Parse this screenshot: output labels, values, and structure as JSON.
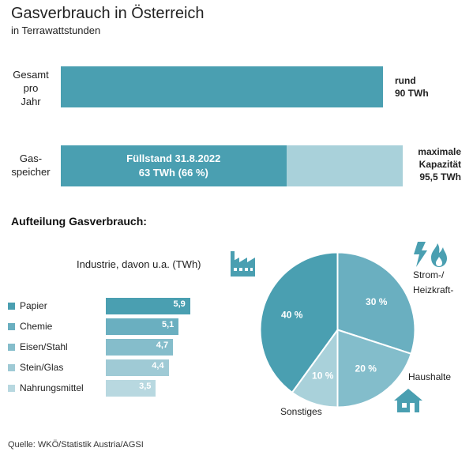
{
  "header": {
    "title": "Gasverbrauch  in Österreich",
    "subtitle": "in Terrawattstunden"
  },
  "top_bars": {
    "consumption": {
      "label": "Gesamt\npro\nJahr",
      "value_text": "rund\n90 TWh",
      "value": 90
    },
    "storage": {
      "label": "Gas-\nspeicher",
      "fill_text_line1": "Füllstand 31.8.2022",
      "fill_text_line2": "63 TWh (66 %)",
      "fill_value": 63,
      "capacity_text": "maximale\nKapazität\n95,5 TWh",
      "capacity": 95.5
    }
  },
  "section": {
    "title": "Aufteilung Gasverbrauch:",
    "industry_title": "Industrie, davon u.a. (TWh)"
  },
  "chart_data": [
    {
      "type": "bar",
      "title": "Gasverbrauch  in Österreich",
      "subtitle": "in Terrawattstunden",
      "categories": [
        "Gesamt pro Jahr",
        "Gasspeicher"
      ],
      "series": [
        {
          "name": "",
          "values": [
            90,
            63
          ]
        },
        {
          "name": "",
          "values": [
            null,
            95.5
          ]
        }
      ],
      "orientation": "horizontal"
    },
    {
      "type": "bar",
      "title": "Industrie, davon u.a. (TWh)",
      "orientation": "horizontal",
      "categories": [
        "Papier",
        "Chemie",
        "Eisen/Stahl",
        "Stein/Glas",
        "Nahrungsmittel"
      ],
      "values": [
        5.9,
        5.1,
        4.7,
        4.4,
        3.5
      ],
      "value_labels": [
        "5,9",
        "5,1",
        "4,7",
        "4,4",
        "3,5"
      ],
      "colors": [
        "#4a9fb1",
        "#6aafc0",
        "#85bdcb",
        "#9fcad5",
        "#b8d8e0"
      ]
    },
    {
      "type": "pie",
      "title": "Aufteilung Gasverbrauch:",
      "slices": [
        {
          "label": "Strom-/\nHeizkraft-",
          "value": 30,
          "value_text": "30 %",
          "color": "#6aafc0"
        },
        {
          "label": "Haushalte",
          "value": 20,
          "value_text": "20 %",
          "color": "#83bdcb"
        },
        {
          "label": "Sonstiges",
          "value": 10,
          "value_text": "10 %",
          "color": "#a9d1da"
        },
        {
          "label": "Industrie",
          "value": 40,
          "value_text": "40 %",
          "color": "#4a9fb1"
        }
      ]
    }
  ],
  "icons": {
    "industry": "factory-icon",
    "power": "lightning-flame-icon",
    "households": "house-icon"
  },
  "colors": {
    "dark": "#4a9fb1",
    "light": "#a9d1da"
  },
  "source": "Quelle: WKÖ/Statistik Austria/AGSI"
}
